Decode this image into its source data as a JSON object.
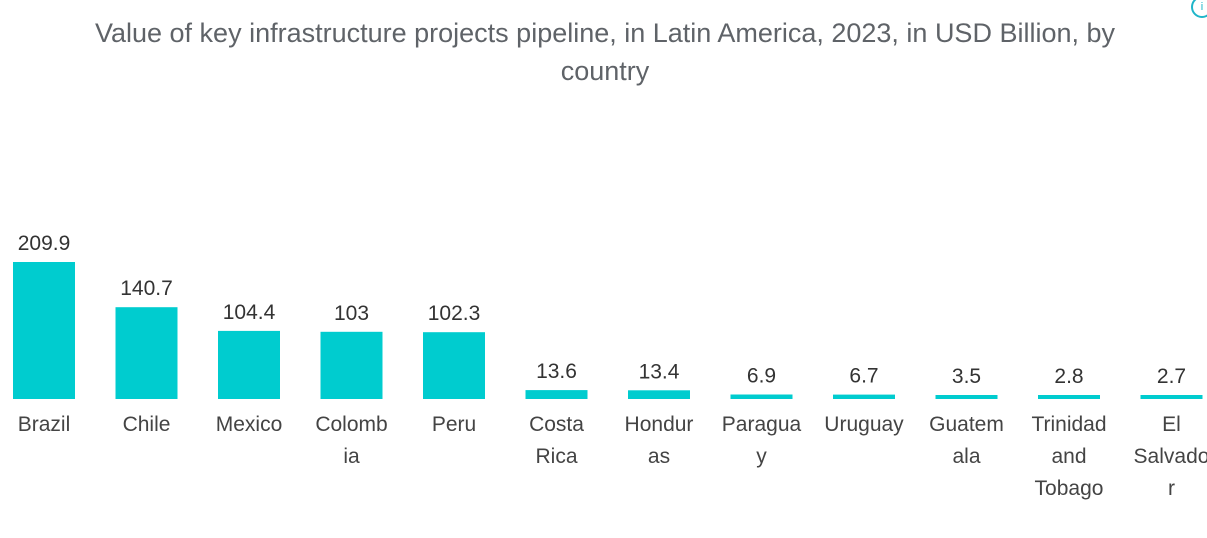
{
  "chart_data": {
    "type": "bar",
    "title_lines": [
      "Value of key infrastructure projects pipeline, in Latin America, 2023, in USD Billion, by",
      "country"
    ],
    "categories": [
      "Brazil",
      "Chile",
      "Mexico",
      "Colombia",
      "Peru",
      "Costa Rica",
      "Honduras",
      "Paraguay",
      "Uruguay",
      "Guatemala",
      "Trinidad and Tobago",
      "El Salvador"
    ],
    "category_label_lines": [
      [
        "Brazil"
      ],
      [
        "Chile"
      ],
      [
        "Mexico"
      ],
      [
        "Colomb",
        "ia"
      ],
      [
        "Peru"
      ],
      [
        "Costa",
        "Rica"
      ],
      [
        "Hondur",
        "as"
      ],
      [
        "Paragua",
        "y"
      ],
      [
        "Uruguay"
      ],
      [
        "Guatem",
        "ala"
      ],
      [
        "Trinidad",
        "and",
        "Tobago"
      ],
      [
        "El",
        "Salvado",
        "r"
      ]
    ],
    "values": [
      209.9,
      140.7,
      104.4,
      103,
      102.3,
      13.6,
      13.4,
      6.9,
      6.7,
      3.5,
      2.8,
      2.7
    ],
    "value_labels": [
      "209.9",
      "140.7",
      "104.4",
      "103",
      "102.3",
      "13.6",
      "13.4",
      "6.9",
      "6.7",
      "3.5",
      "2.8",
      "2.7"
    ],
    "xlabel": "",
    "ylabel": "",
    "ylim": [
      0,
      209.9
    ],
    "grid": false,
    "legend": "none",
    "bar_color": "#00cccf"
  }
}
